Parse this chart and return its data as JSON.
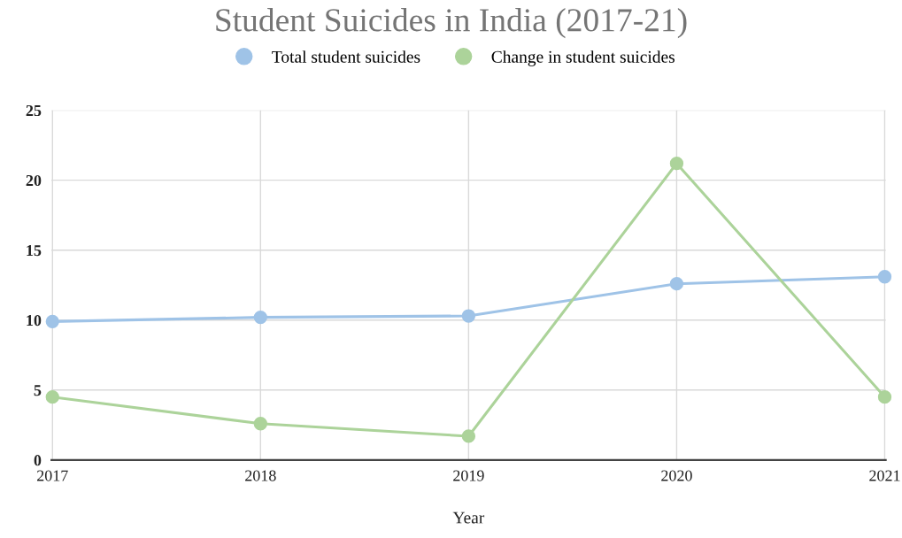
{
  "chart_data": {
    "type": "line",
    "title": "Student Suicides in India (2017-21)",
    "xlabel": "Year",
    "categories": [
      "2017",
      "2018",
      "2019",
      "2020",
      "2021"
    ],
    "series": [
      {
        "name": "Total student suicides",
        "color": "#9fc3e7",
        "values": [
          9.9,
          10.2,
          10.3,
          12.6,
          13.1
        ]
      },
      {
        "name": "Change in student suicides",
        "color": "#acd39a",
        "values": [
          4.5,
          2.6,
          1.7,
          21.2,
          4.5
        ]
      }
    ],
    "ylim": [
      0,
      25
    ],
    "yticks": [
      0,
      5,
      10,
      15,
      20,
      25
    ],
    "grid": true,
    "legend": "top",
    "marker": "circle",
    "line_style": "solid"
  }
}
